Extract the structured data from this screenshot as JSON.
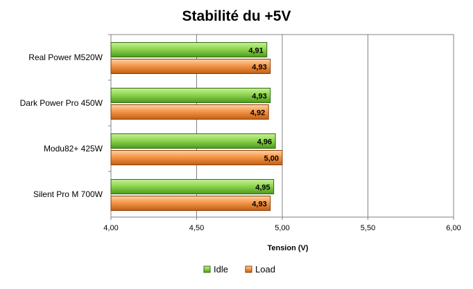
{
  "chart_data": {
    "type": "bar",
    "orientation": "horizontal",
    "title": "Stabilité du +5V",
    "xlabel": "Tension (V)",
    "ylabel": "",
    "xlim": [
      4.0,
      6.0
    ],
    "ticks": [
      4.0,
      4.5,
      5.0,
      5.5,
      6.0
    ],
    "tick_labels": [
      "4,00",
      "4,50",
      "5,00",
      "5,50",
      "6,00"
    ],
    "grid": true,
    "legend_position": "bottom",
    "categories": [
      "Real Power M520W",
      "Dark Power Pro 450W",
      "Modu82+ 425W",
      "Silent Pro M 700W"
    ],
    "series": [
      {
        "name": "Idle",
        "color": "#7ac943",
        "values": [
          4.91,
          4.93,
          4.96,
          4.95
        ],
        "labels": [
          "4,91",
          "4,93",
          "4,96",
          "4,95"
        ]
      },
      {
        "name": "Load",
        "color": "#f08a3c",
        "values": [
          4.93,
          4.92,
          5.0,
          4.93
        ],
        "labels": [
          "4,93",
          "4,92",
          "5,00",
          "4,93"
        ]
      }
    ]
  }
}
